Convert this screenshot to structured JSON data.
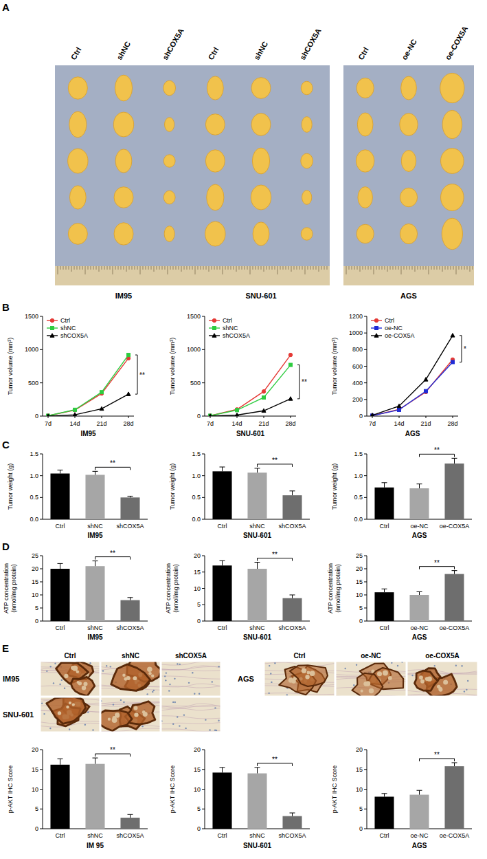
{
  "panel_labels": [
    "A",
    "B",
    "C",
    "D",
    "E"
  ],
  "photos": {
    "groups": [
      {
        "label": "IM95",
        "columns": [
          "Ctrl",
          "shNC",
          "shCOX5A"
        ]
      },
      {
        "label": "SNU-601",
        "columns": [
          "Ctrl",
          "shNC",
          "shCOX5A"
        ]
      },
      {
        "label": "AGS",
        "columns": [
          "Ctrl",
          "oe-NC",
          "oe-COX5A"
        ]
      }
    ]
  },
  "ihc": {
    "groups": [
      {
        "rows": [
          "IM95",
          "SNU-601"
        ],
        "columns": [
          "Ctrl",
          "shNC",
          "shCOX5A"
        ]
      },
      {
        "rows": [
          "AGS"
        ],
        "columns": [
          "Ctrl",
          "oe-NC",
          "oe-COX5A"
        ]
      }
    ]
  },
  "chart_data": [
    {
      "type": "line",
      "xlabel": "IM95",
      "ylabel": "Tumor volume (mm³)",
      "categories": [
        "7d",
        "14d",
        "21d",
        "28d"
      ],
      "series": [
        {
          "name": "Ctrl",
          "color": "#e53935",
          "marker": "circle",
          "values": [
            5,
            90,
            340,
            870
          ]
        },
        {
          "name": "shNC",
          "color": "#2ecc40",
          "marker": "square",
          "values": [
            5,
            95,
            360,
            920
          ]
        },
        {
          "name": "shCOX5A",
          "color": "#000000",
          "marker": "triangle",
          "values": [
            0,
            20,
            110,
            330
          ]
        }
      ],
      "ylim": [
        0,
        1500
      ],
      "yticks": [
        0,
        500,
        1000,
        1500
      ],
      "grid": false,
      "legend": "upper left",
      "annotations": [
        "**"
      ]
    },
    {
      "type": "line",
      "xlabel": "SNU-601",
      "ylabel": "Tumor volume (mm³)",
      "categories": [
        "7d",
        "14d",
        "21d",
        "28d"
      ],
      "series": [
        {
          "name": "Ctrl",
          "color": "#e53935",
          "marker": "circle",
          "values": [
            5,
            100,
            370,
            920
          ]
        },
        {
          "name": "shNC",
          "color": "#2ecc40",
          "marker": "square",
          "values": [
            5,
            90,
            280,
            770
          ]
        },
        {
          "name": "shCOX5A",
          "color": "#000000",
          "marker": "triangle",
          "values": [
            0,
            15,
            80,
            260
          ]
        }
      ],
      "ylim": [
        0,
        1500
      ],
      "yticks": [
        0,
        500,
        1000,
        1500
      ],
      "grid": false,
      "legend": "upper left",
      "annotations": [
        "**"
      ]
    },
    {
      "type": "line",
      "xlabel": "AGS",
      "ylabel": "Tumor volume (mm³)",
      "categories": [
        "7d",
        "14d",
        "21d",
        "28d"
      ],
      "series": [
        {
          "name": "Ctrl",
          "color": "#e53935",
          "marker": "circle",
          "values": [
            5,
            80,
            290,
            680
          ]
        },
        {
          "name": "oe-NC",
          "color": "#1f2bd6",
          "marker": "square",
          "values": [
            5,
            75,
            300,
            650
          ]
        },
        {
          "name": "oe-COX5A",
          "color": "#000000",
          "marker": "triangle",
          "values": [
            10,
            120,
            440,
            970
          ]
        }
      ],
      "ylim": [
        0,
        1200
      ],
      "yticks": [
        0,
        200,
        400,
        600,
        800,
        1000,
        1200
      ],
      "grid": false,
      "legend": "upper left",
      "annotations": [
        "*"
      ]
    },
    {
      "type": "bar",
      "xlabel": "IM95",
      "ylabel": "Tumor weight (g)",
      "categories": [
        "Ctrl",
        "shNC",
        "shCOX5A"
      ],
      "values": [
        1.05,
        1.02,
        0.5
      ],
      "errors": [
        0.08,
        0.08,
        0.03
      ],
      "colors": [
        "#000000",
        "#a6a6a6",
        "#6e6e6e"
      ],
      "ylim": [
        0,
        1.5
      ],
      "yticks": [
        {
          "value": 0,
          "label": "0.0"
        },
        0.5,
        {
          "value": 1,
          "label": "1.0"
        },
        1.5
      ],
      "grid": false,
      "annotations": [
        "**"
      ]
    },
    {
      "type": "bar",
      "xlabel": "SNU-601",
      "ylabel": "Tumor weight (g)",
      "categories": [
        "Ctrl",
        "shNC",
        "shCOX5A"
      ],
      "values": [
        1.1,
        1.07,
        0.55
      ],
      "errors": [
        0.1,
        0.1,
        0.1
      ],
      "colors": [
        "#000000",
        "#a6a6a6",
        "#6e6e6e"
      ],
      "ylim": [
        0,
        1.5
      ],
      "yticks": [
        {
          "value": 0,
          "label": "0.0"
        },
        0.5,
        {
          "value": 1,
          "label": "1.0"
        },
        1.5
      ],
      "grid": false,
      "annotations": [
        "**"
      ]
    },
    {
      "type": "bar",
      "xlabel": "AGS",
      "ylabel": "Tumor weight (g)",
      "categories": [
        "Ctrl",
        "oe-NC",
        "oe-COX5A"
      ],
      "values": [
        0.73,
        0.71,
        1.28
      ],
      "errors": [
        0.11,
        0.1,
        0.12
      ],
      "colors": [
        "#000000",
        "#a6a6a6",
        "#6e6e6e"
      ],
      "ylim": [
        0,
        1.5
      ],
      "yticks": [
        {
          "value": 0,
          "label": "0.0"
        },
        0.5,
        {
          "value": 1,
          "label": "1.0"
        },
        1.5
      ],
      "grid": false,
      "annotations": [
        "**"
      ]
    },
    {
      "type": "bar",
      "xlabel": "IM95",
      "ylabel": "ATP concentration (nmol/mg protein)",
      "categories": [
        "Ctrl",
        "shNC",
        "shCOX5A"
      ],
      "values": [
        20,
        21,
        8
      ],
      "errors": [
        2,
        2,
        1
      ],
      "colors": [
        "#000000",
        "#a6a6a6",
        "#6e6e6e"
      ],
      "ylim": [
        0,
        25
      ],
      "yticks": [
        0,
        5,
        10,
        15,
        20,
        25
      ],
      "grid": false,
      "annotations": [
        "**"
      ]
    },
    {
      "type": "bar",
      "xlabel": "SNU-601",
      "ylabel": "ATP concentration (nmol/mg protein)",
      "categories": [
        "Ctrl",
        "shNC",
        "shCOX5A"
      ],
      "values": [
        17,
        16,
        7
      ],
      "errors": [
        1.5,
        2,
        1
      ],
      "colors": [
        "#000000",
        "#a6a6a6",
        "#6e6e6e"
      ],
      "ylim": [
        0,
        20
      ],
      "yticks": [
        0,
        5,
        10,
        15,
        20
      ],
      "grid": false,
      "annotations": [
        "**"
      ]
    },
    {
      "type": "bar",
      "xlabel": "AGS",
      "ylabel": "ATP concentration (nmol/mg protein)",
      "categories": [
        "Ctrl",
        "oe-NC",
        "oe-COX5A"
      ],
      "values": [
        11,
        10,
        18
      ],
      "errors": [
        1.3,
        1.2,
        1.3
      ],
      "colors": [
        "#000000",
        "#a6a6a6",
        "#6e6e6e"
      ],
      "ylim": [
        0,
        25
      ],
      "yticks": [
        0,
        5,
        10,
        15,
        20,
        25
      ],
      "grid": false,
      "annotations": [
        "**"
      ]
    },
    {
      "type": "bar",
      "xlabel": "IM 95",
      "ylabel": "p-AKT IHC Score",
      "categories": [
        "Ctrl",
        "shNC",
        "shCOX5A"
      ],
      "values": [
        16.2,
        16.4,
        2.8
      ],
      "errors": [
        1.5,
        1.5,
        0.8
      ],
      "colors": [
        "#000000",
        "#a6a6a6",
        "#6e6e6e"
      ],
      "ylim": [
        0,
        20
      ],
      "yticks": [
        0,
        5,
        10,
        15,
        20
      ],
      "grid": false,
      "annotations": [
        "**"
      ]
    },
    {
      "type": "bar",
      "xlabel": "SNU-601",
      "ylabel": "p-AKT IHC Score",
      "categories": [
        "Ctrl",
        "shNC",
        "shCOX5A"
      ],
      "values": [
        14.2,
        14.0,
        3.2
      ],
      "errors": [
        1.3,
        1.5,
        0.8
      ],
      "colors": [
        "#000000",
        "#a6a6a6",
        "#6e6e6e"
      ],
      "ylim": [
        0,
        20
      ],
      "yticks": [
        0,
        5,
        10,
        15,
        20
      ],
      "grid": false,
      "annotations": [
        "**"
      ]
    },
    {
      "type": "bar",
      "xlabel": "AGS",
      "ylabel": "p-AKT IHC Score",
      "categories": [
        "Ctrl",
        "oe-NC",
        "oe-COX5A"
      ],
      "values": [
        8.1,
        8.6,
        15.8
      ],
      "errors": [
        0.8,
        1.1,
        0.9
      ],
      "colors": [
        "#000000",
        "#a6a6a6",
        "#6e6e6e"
      ],
      "ylim": [
        0,
        20
      ],
      "yticks": [
        0,
        5,
        10,
        15,
        20
      ],
      "grid": false,
      "annotations": [
        "**"
      ]
    }
  ]
}
